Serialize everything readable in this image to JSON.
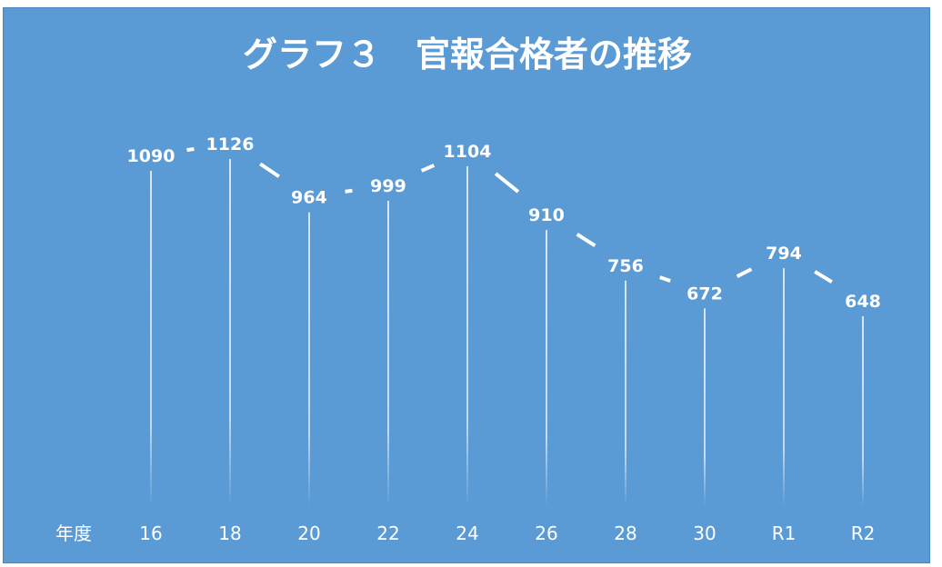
{
  "colors": {
    "background": "#5b9bd5",
    "line": "#ffffff",
    "text": "#ffffff"
  },
  "chart_data": {
    "type": "line",
    "title": "グラフ３　官報合格者の推移",
    "xlabel": "年度",
    "ylabel": "",
    "x": [
      "16",
      "18",
      "20",
      "22",
      "24",
      "26",
      "28",
      "30",
      "R1",
      "R2"
    ],
    "series": [
      {
        "values": [
          1090,
          1126,
          964,
          999,
          1104,
          910,
          756,
          672,
          794,
          648
        ]
      }
    ],
    "data_labels": [
      "1090",
      "1126",
      "964",
      "999",
      "1104",
      "910",
      "756",
      "672",
      "794",
      "648"
    ],
    "grid": false,
    "legend": "none",
    "drop_lines": true
  }
}
